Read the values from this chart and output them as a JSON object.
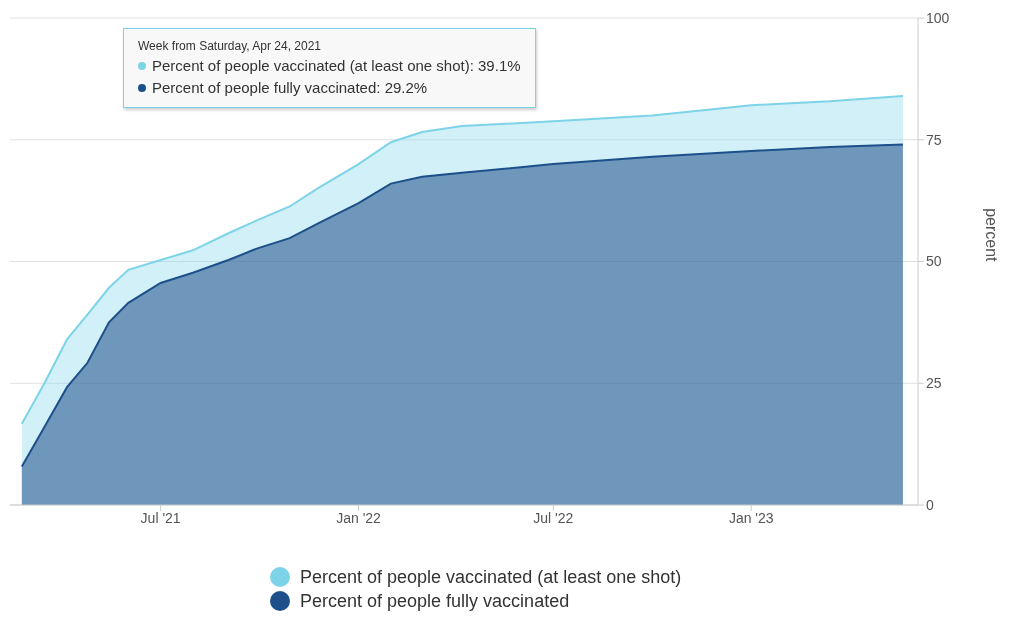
{
  "chart_data": {
    "type": "area",
    "ylabel": "percent",
    "x": [
      "2021-02-22",
      "2021-03-15",
      "2021-04-05",
      "2021-04-24",
      "2021-05-14",
      "2021-06-01",
      "2021-07-01",
      "2021-07-31",
      "2021-09-02",
      "2021-09-29",
      "2021-10-29",
      "2021-11-24",
      "2022-01-01",
      "2022-01-31",
      "2022-03-01",
      "2022-04-07",
      "2022-07-01",
      "2022-10-01",
      "2023-01-01",
      "2023-03-15",
      "2023-05-22"
    ],
    "series": [
      {
        "name": "Percent of people vaccinated (at least one shot)",
        "color": "#7dd3e8",
        "values": [
          16.7,
          25,
          34,
          39.1,
          44.6,
          48.3,
          50.3,
          52.3,
          55.8,
          58.5,
          61.3,
          65,
          70,
          74.5,
          76.6,
          77.8,
          78.8,
          80,
          82.1,
          82.9,
          84
        ]
      },
      {
        "name": "Percent of people fully vaccinated",
        "color": "#1d4f8a",
        "values": [
          7.9,
          16,
          24.2,
          29.2,
          37.5,
          41.5,
          45.6,
          47.7,
          50.3,
          52.7,
          54.8,
          57.8,
          62,
          66,
          67.4,
          68.2,
          70,
          71.5,
          72.7,
          73.5,
          74
        ]
      }
    ],
    "xlim": [
      "2021-02-11",
      "2023-06-05"
    ],
    "xticks": [
      {
        "value": "2021-07-01",
        "label": "Jul '21"
      },
      {
        "value": "2022-01-01",
        "label": "Jan '22"
      },
      {
        "value": "2022-07-01",
        "label": "Jul '22"
      },
      {
        "value": "2023-01-01",
        "label": "Jan '23"
      }
    ],
    "ylim": [
      0,
      100
    ],
    "yticks": [
      0,
      25,
      50,
      75,
      100
    ],
    "grid": "y",
    "legend": "bottom",
    "annotations": [
      "Week from Saturday, Apr 24, 2021",
      "Percent of people vaccinated (at least one shot): 39.1%",
      "Percent of people fully vaccinated: 29.2%"
    ]
  }
}
